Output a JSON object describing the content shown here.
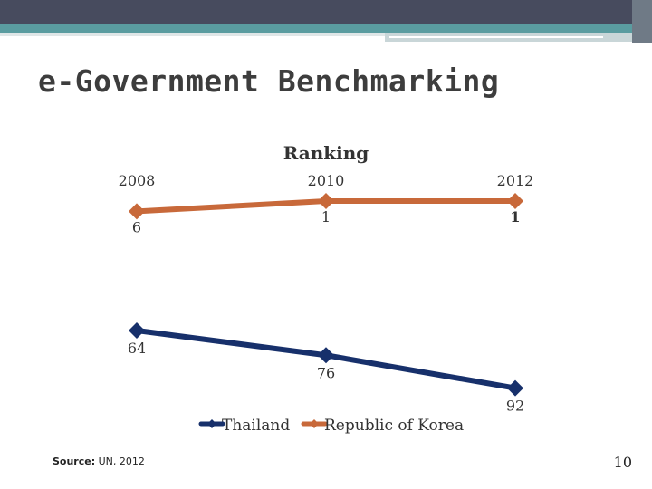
{
  "slide": {
    "title": "e-Government Benchmarking",
    "source_label": "Source:",
    "source_text": "UN, 2012",
    "page_number": "10"
  },
  "colors": {
    "bar_dark": "#474b5e",
    "bar_teal": "#5a9ca0",
    "thailand": "#17306b",
    "korea": "#c8693a"
  },
  "chart_data": {
    "type": "line",
    "title": "Ranking",
    "categories": [
      "2008",
      "2010",
      "2012"
    ],
    "y_inverted": true,
    "series": [
      {
        "name": "Thailand",
        "values": [
          64,
          76,
          92
        ]
      },
      {
        "name": "Republic of Korea",
        "values": [
          6,
          1,
          1
        ]
      }
    ],
    "legend_position": "bottom"
  }
}
